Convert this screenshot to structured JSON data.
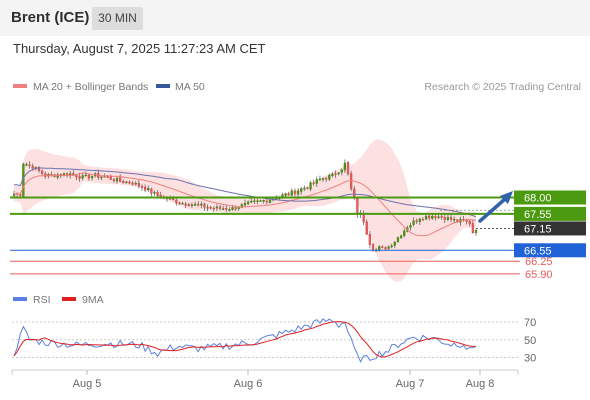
{
  "header": {
    "title": "Brent (ICE)",
    "timeframe": "30 MIN",
    "datetime": "Thursday, August 7, 2025 11:27:23 AM CET"
  },
  "legend": {
    "ma20_label": "MA 20 + Bollinger Bands",
    "ma50_label": "MA 50",
    "credit": "Research © 2025 Trading Central",
    "rsi_label": "RSI",
    "rsi_ma_label": "9MA"
  },
  "colors": {
    "green": "#4c9a10",
    "blue": "#1f63d6",
    "red": "#e85b5b",
    "dark": "#333333",
    "bollinger_fill": "#fde0e0",
    "ma20": "#f08080",
    "ma50": "#6a72b0",
    "arrow": "#2f62a8",
    "rsi_line": "#5b7fe0",
    "rsi_ma": "#e02020"
  },
  "chart_data": [
    {
      "type": "candlestick",
      "title": "Brent (ICE)",
      "interval": "30 MIN",
      "x_ticks": [
        "Aug 5",
        "Aug 6",
        "Aug 7",
        "Aug 8"
      ],
      "ylim": [
        65.7,
        68.55
      ],
      "levels": [
        {
          "value": 68.0,
          "label": "68.00",
          "style": "green-box",
          "kind": "resistance"
        },
        {
          "value": 67.55,
          "label": "67.55",
          "style": "green-box",
          "kind": "resistance"
        },
        {
          "value": 67.15,
          "label": "67.15",
          "style": "dark-box",
          "kind": "current"
        },
        {
          "value": 66.55,
          "label": "66.55",
          "style": "blue-box",
          "kind": "pivot"
        },
        {
          "value": 66.25,
          "label": "66.25",
          "style": "red-text",
          "kind": "support"
        },
        {
          "value": 65.9,
          "label": "65.90",
          "style": "red-text",
          "kind": "support"
        }
      ],
      "close_anchors": [
        [
          0,
          68.1
        ],
        [
          2,
          68.1
        ],
        [
          3,
          68.95
        ],
        [
          6,
          68.85
        ],
        [
          10,
          68.6
        ],
        [
          18,
          68.65
        ],
        [
          22,
          68.55
        ],
        [
          26,
          68.6
        ],
        [
          30,
          68.55
        ],
        [
          34,
          68.45
        ],
        [
          38,
          68.4
        ],
        [
          42,
          68.25
        ],
        [
          46,
          68.05
        ],
        [
          50,
          67.95
        ],
        [
          54,
          67.85
        ],
        [
          58,
          67.8
        ],
        [
          64,
          67.7
        ],
        [
          70,
          67.7
        ],
        [
          76,
          67.85
        ],
        [
          82,
          67.95
        ],
        [
          88,
          68.1
        ],
        [
          94,
          68.3
        ],
        [
          98,
          68.5
        ],
        [
          102,
          68.6
        ],
        [
          105,
          68.8
        ],
        [
          106,
          68.9
        ],
        [
          107,
          68.6
        ],
        [
          108,
          68.2
        ],
        [
          110,
          67.6
        ],
        [
          112,
          67.4
        ],
        [
          114,
          66.8
        ],
        [
          116,
          66.55
        ],
        [
          118,
          66.6
        ],
        [
          120,
          66.65
        ],
        [
          122,
          66.8
        ],
        [
          126,
          67.2
        ],
        [
          130,
          67.45
        ],
        [
          134,
          67.5
        ],
        [
          138,
          67.45
        ],
        [
          142,
          67.35
        ],
        [
          144,
          67.35
        ],
        [
          146,
          67.3
        ],
        [
          147,
          67.05
        ],
        [
          148,
          67.15
        ]
      ],
      "candle_count": 149
    },
    {
      "type": "line",
      "title": "RSI",
      "series": [
        {
          "name": "RSI",
          "color": "#5b7fe0"
        },
        {
          "name": "9MA",
          "color": "#e02020"
        }
      ],
      "y_ticks": [
        70,
        50,
        30
      ],
      "ylim": [
        22,
        78
      ],
      "rsi_anchors": [
        [
          0,
          35
        ],
        [
          3,
          62
        ],
        [
          5,
          50
        ],
        [
          10,
          47
        ],
        [
          20,
          44
        ],
        [
          30,
          46
        ],
        [
          40,
          44
        ],
        [
          46,
          35
        ],
        [
          52,
          43
        ],
        [
          58,
          40
        ],
        [
          66,
          42
        ],
        [
          76,
          47
        ],
        [
          86,
          57
        ],
        [
          96,
          68
        ],
        [
          102,
          73
        ],
        [
          104,
          67
        ],
        [
          106,
          70
        ],
        [
          108,
          48
        ],
        [
          110,
          30
        ],
        [
          113,
          28
        ],
        [
          116,
          33
        ],
        [
          120,
          38
        ],
        [
          124,
          47
        ],
        [
          128,
          53
        ],
        [
          134,
          52
        ],
        [
          140,
          45
        ],
        [
          144,
          46
        ],
        [
          146,
          37
        ],
        [
          148,
          46
        ]
      ]
    }
  ]
}
